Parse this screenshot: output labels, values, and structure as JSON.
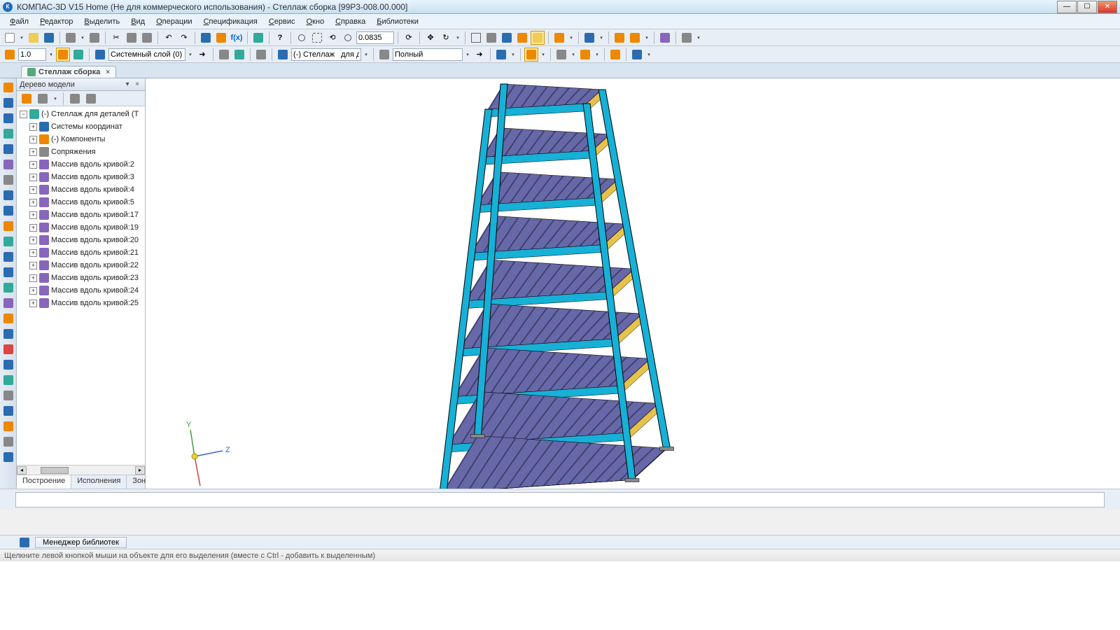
{
  "title": "КОМПАС-3D V15 Home (Не для коммерческого использования) - Стеллаж сборка [99Р3-008.00.000]",
  "menus": [
    "Файл",
    "Редактор",
    "Выделить",
    "Вид",
    "Операции",
    "Спецификация",
    "Сервис",
    "Окно",
    "Справка",
    "Библиотеки"
  ],
  "toolbar1": {
    "zoom_value": "0.0835"
  },
  "toolbar2": {
    "scale": "1.0",
    "layer": "Системный слой (0)",
    "assembly": "(-) Стеллаж   для д",
    "display_mode": "Полный"
  },
  "doc_tab": {
    "label": "Стеллаж сборка"
  },
  "tree": {
    "title": "Дерево модели",
    "root": "(-) Стеллаж   для деталей  (Т",
    "nodes": [
      {
        "label": "Системы координат",
        "icon": "axis",
        "exp": true
      },
      {
        "label": "(-) Компоненты",
        "icon": "comp",
        "exp": true
      },
      {
        "label": "Сопряжения",
        "icon": "clip",
        "exp": true
      },
      {
        "label": "Массив вдоль кривой:2",
        "icon": "array",
        "exp": true
      },
      {
        "label": "Массив вдоль кривой:3",
        "icon": "array",
        "exp": true
      },
      {
        "label": "Массив вдоль кривой:4",
        "icon": "array",
        "exp": true
      },
      {
        "label": "Массив вдоль кривой:5",
        "icon": "array",
        "exp": true
      },
      {
        "label": "Массив вдоль кривой:17",
        "icon": "array",
        "exp": true
      },
      {
        "label": "Массив вдоль кривой:19",
        "icon": "array",
        "exp": true
      },
      {
        "label": "Массив вдоль кривой:20",
        "icon": "array",
        "exp": true
      },
      {
        "label": "Массив вдоль кривой:21",
        "icon": "array",
        "exp": true
      },
      {
        "label": "Массив вдоль кривой:22",
        "icon": "array",
        "exp": true
      },
      {
        "label": "Массив вдоль кривой:23",
        "icon": "array",
        "exp": true
      },
      {
        "label": "Массив вдоль кривой:24",
        "icon": "array",
        "exp": true
      },
      {
        "label": "Массив вдоль кривой:25",
        "icon": "array",
        "exp": true
      }
    ],
    "tabs": [
      "Построение",
      "Исполнения",
      "Зоны"
    ]
  },
  "libbar": {
    "label": "Менеджер библиотек"
  },
  "status": "Щелкните левой кнопкой мыши на объекте для его выделения (вместе с Ctrl - добавить к выделенным)",
  "model": {
    "frame_color": "#17b0d6",
    "frame_edge": "#000000",
    "shelf_color": "#6768a8",
    "stripe_color": "#e6c24a",
    "foot_color": "#888888",
    "shelves": 9,
    "axis": {
      "x_color": "#d04040",
      "y_color": "#40a040",
      "z_color": "#4060d0"
    }
  }
}
